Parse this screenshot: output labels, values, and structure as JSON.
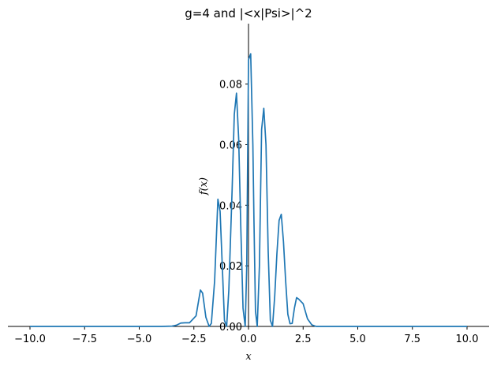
{
  "chart_data": {
    "type": "line",
    "title": "g=4 and |<x|Psi>|^2",
    "xlabel": "x",
    "ylabel": "f(x)",
    "xlim": [
      -10.0,
      10.0
    ],
    "ylim": [
      0.0,
      0.095
    ],
    "x_ticks": [
      -10.0,
      -7.5,
      -5.0,
      -2.5,
      0.0,
      2.5,
      5.0,
      7.5,
      10.0
    ],
    "x_tick_labels": [
      "−10.0",
      "−7.5",
      "−5.0",
      "−2.5",
      "0.0",
      "2.5",
      "5.0",
      "7.5",
      "10.0"
    ],
    "y_ticks": [
      0.0,
      0.02,
      0.04,
      0.06,
      0.08
    ],
    "y_tick_labels": [
      "0.00",
      "0.02",
      "0.04",
      "0.06",
      "0.08"
    ],
    "grid": false,
    "series_color": "#1f77b4",
    "series": [
      {
        "x": [
          -10.0,
          -9.0,
          -8.0,
          -7.0,
          -6.0,
          -5.0,
          -4.0,
          -3.5,
          -3.3,
          -3.1,
          -2.9,
          -2.7,
          -2.4,
          -2.2,
          -2.1,
          -1.95,
          -1.8,
          -1.7,
          -1.55,
          -1.4,
          -1.3,
          -1.2,
          -1.1,
          -1.0,
          -0.9,
          -0.75,
          -0.65,
          -0.55,
          -0.45,
          -0.35,
          -0.25,
          -0.15,
          -0.08,
          0.0,
          0.1,
          0.2,
          0.25,
          0.32,
          0.4,
          0.5,
          0.6,
          0.7,
          0.8,
          0.9,
          1.0,
          1.1,
          1.2,
          1.3,
          1.4,
          1.5,
          1.6,
          1.7,
          1.8,
          1.9,
          2.0,
          2.1,
          2.2,
          2.3,
          2.5,
          2.7,
          2.9,
          3.1,
          3.3,
          3.6,
          4.0,
          5.0,
          6.0,
          7.0,
          8.0,
          9.0,
          10.0
        ],
        "y": [
          0.0,
          0.0,
          0.0,
          0.0,
          0.0,
          0.0,
          0.0,
          0.0001,
          0.0004,
          0.0011,
          0.0012,
          0.0012,
          0.0035,
          0.012,
          0.011,
          0.003,
          0.0,
          0.001,
          0.015,
          0.042,
          0.038,
          0.02,
          0.002,
          0.0,
          0.012,
          0.045,
          0.07,
          0.077,
          0.062,
          0.032,
          0.006,
          0.0,
          0.02,
          0.088,
          0.09,
          0.06,
          0.035,
          0.005,
          0.0,
          0.02,
          0.065,
          0.072,
          0.06,
          0.025,
          0.002,
          0.0,
          0.01,
          0.024,
          0.035,
          0.037,
          0.028,
          0.015,
          0.004,
          0.0009,
          0.001,
          0.006,
          0.0095,
          0.009,
          0.0075,
          0.0025,
          0.0005,
          0.0,
          0.0,
          0.0,
          0.0,
          0.0,
          0.0,
          0.0,
          0.0,
          0.0,
          0.0
        ]
      }
    ]
  }
}
